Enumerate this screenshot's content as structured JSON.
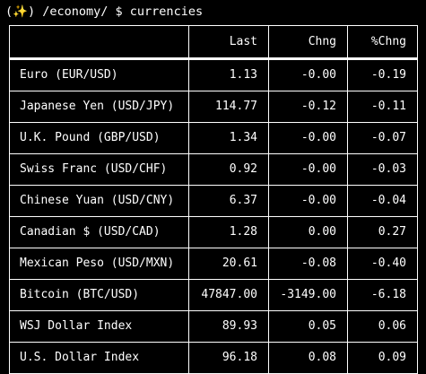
{
  "prompt": {
    "sparkle": "✨",
    "path": "/economy/",
    "symbol": "$",
    "command": "currencies"
  },
  "table": {
    "columns": [
      "",
      "Last",
      "Chng",
      "%Chng"
    ],
    "rows": [
      {
        "name": "Euro (EUR/USD)",
        "last": "1.13",
        "chng": "-0.00",
        "pct": "-0.19"
      },
      {
        "name": "Japanese Yen (USD/JPY)",
        "last": "114.77",
        "chng": "-0.12",
        "pct": "-0.11"
      },
      {
        "name": "U.K. Pound (GBP/USD)",
        "last": "1.34",
        "chng": "-0.00",
        "pct": "-0.07"
      },
      {
        "name": "Swiss Franc (USD/CHF)",
        "last": "0.92",
        "chng": "-0.00",
        "pct": "-0.03"
      },
      {
        "name": "Chinese Yuan (USD/CNY)",
        "last": "6.37",
        "chng": "-0.00",
        "pct": "-0.04"
      },
      {
        "name": "Canadian $ (USD/CAD)",
        "last": "1.28",
        "chng": "0.00",
        "pct": "0.27"
      },
      {
        "name": "Mexican Peso (USD/MXN)",
        "last": "20.61",
        "chng": "-0.08",
        "pct": "-0.40"
      },
      {
        "name": "Bitcoin (BTC/USD)",
        "last": "47847.00",
        "chng": "-3149.00",
        "pct": "-6.18"
      },
      {
        "name": "WSJ Dollar Index",
        "last": "89.93",
        "chng": "0.05",
        "pct": "0.06"
      },
      {
        "name": "U.S. Dollar Index",
        "last": "96.18",
        "chng": "0.08",
        "pct": "0.09"
      }
    ]
  },
  "colors": {
    "background": "#000000",
    "foreground": "#ffffff",
    "sparkle": "#f5c518"
  }
}
